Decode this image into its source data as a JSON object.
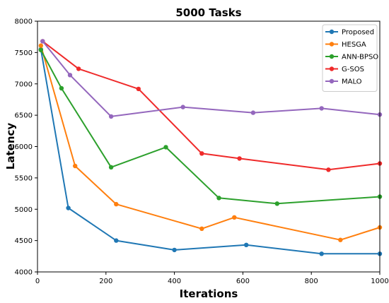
{
  "chart_data": {
    "type": "line",
    "title": "5000 Tasks",
    "xlabel": "Iterations",
    "ylabel": "Latency",
    "xlim": [
      0,
      1000
    ],
    "ylim": [
      4000,
      8000
    ],
    "xticks": [
      0,
      200,
      400,
      600,
      800,
      1000
    ],
    "yticks": [
      4000,
      4500,
      5000,
      5500,
      6000,
      6500,
      7000,
      7500,
      8000
    ],
    "grid": false,
    "legend_position": "top-right",
    "series": [
      {
        "name": "Proposed",
        "color": "#1f77b4",
        "x": [
          10,
          90,
          230,
          400,
          610,
          830,
          1000
        ],
        "y": [
          7550,
          5020,
          4500,
          4350,
          4430,
          4290,
          4290
        ]
      },
      {
        "name": "HESGA",
        "color": "#ff7f0e",
        "x": [
          10,
          110,
          230,
          480,
          575,
          885,
          1000
        ],
        "y": [
          7610,
          5690,
          5080,
          4690,
          4870,
          4510,
          4710
        ]
      },
      {
        "name": "ANN-BPSO",
        "color": "#2ca02c",
        "x": [
          10,
          70,
          215,
          375,
          530,
          700,
          1000
        ],
        "y": [
          7540,
          6930,
          5670,
          5990,
          5180,
          5090,
          5200
        ]
      },
      {
        "name": "G-SOS",
        "color": "#ef2a2a",
        "x": [
          15,
          120,
          295,
          480,
          590,
          850,
          1000
        ],
        "y": [
          7680,
          7240,
          6920,
          5890,
          5810,
          5630,
          5730
        ]
      },
      {
        "name": "MALO",
        "color": "#9467bd",
        "x": [
          15,
          95,
          215,
          425,
          630,
          830,
          1000
        ],
        "y": [
          7680,
          7140,
          6480,
          6630,
          6540,
          6610,
          6510
        ]
      }
    ]
  }
}
